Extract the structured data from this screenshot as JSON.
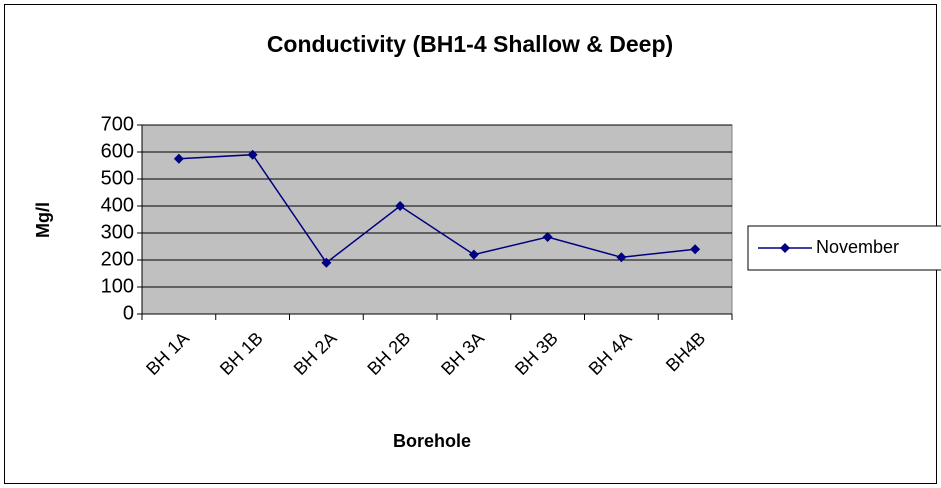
{
  "chart_data": {
    "type": "line",
    "title": "Conductivity (BH1-4 Shallow & Deep)",
    "x_label": "Borehole",
    "y_label": "Mg/l",
    "categories": [
      "BH 1A",
      "BH 1B",
      "BH 2A",
      "BH 2B",
      "BH 3A",
      "BH 3B",
      "BH 4A",
      "BH4B"
    ],
    "series": [
      {
        "name": "November",
        "color": "#000080",
        "values": [
          575,
          590,
          190,
          400,
          220,
          285,
          210,
          240
        ]
      }
    ],
    "ylim": [
      0,
      700
    ],
    "yticks": [
      0,
      100,
      200,
      300,
      400,
      500,
      600,
      700
    ],
    "grid": true,
    "legend": "right",
    "plot_background": "#c0c0c0"
  }
}
